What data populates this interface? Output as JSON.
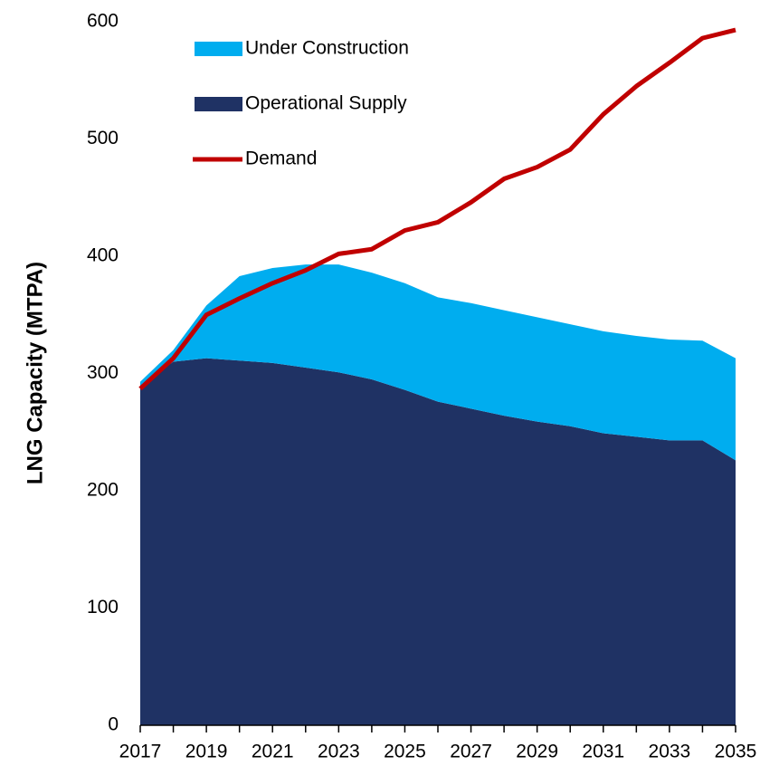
{
  "chart_data": {
    "type": "area",
    "y_label": "LNG Capacity (MTPA)",
    "x": [
      2017,
      2018,
      2019,
      2020,
      2021,
      2022,
      2023,
      2024,
      2025,
      2026,
      2027,
      2028,
      2029,
      2030,
      2031,
      2032,
      2033,
      2034,
      2035
    ],
    "series": [
      {
        "name": "Under Construction",
        "color": "#00adef",
        "kind": "stacked-area",
        "values": [
          3,
          10,
          45,
          72,
          81,
          88,
          92,
          91,
          91,
          89,
          90,
          90,
          89,
          87,
          87,
          86,
          86,
          85,
          87
        ]
      },
      {
        "name": "Operational Supply",
        "color": "#1f3264",
        "kind": "stacked-area",
        "values": [
          290,
          310,
          313,
          311,
          309,
          305,
          301,
          295,
          286,
          276,
          270,
          264,
          259,
          255,
          249,
          246,
          243,
          243,
          226
        ]
      },
      {
        "name": "Demand",
        "color": "#c00000",
        "kind": "line",
        "values": [
          287,
          313,
          350,
          364,
          377,
          388,
          402,
          406,
          422,
          429,
          446,
          466,
          476,
          491,
          521,
          545,
          565,
          586,
          593
        ]
      }
    ],
    "xlim": [
      2017,
      2035
    ],
    "xticks": [
      2017,
      2019,
      2021,
      2023,
      2025,
      2027,
      2029,
      2031,
      2033,
      2035
    ],
    "ylim": [
      0,
      600
    ],
    "yticks": [
      0,
      100,
      200,
      300,
      400,
      500,
      600
    ],
    "grid": false,
    "legend": "top-left"
  }
}
